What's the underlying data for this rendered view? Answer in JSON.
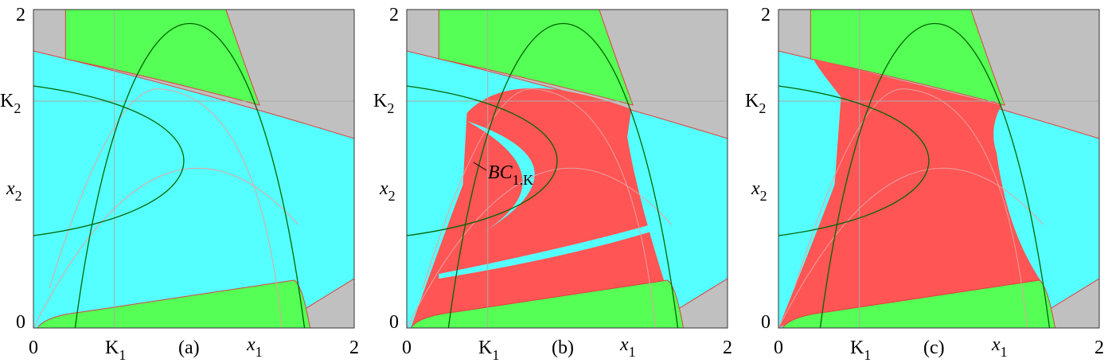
{
  "panels": [
    {
      "label": "(a)",
      "x_min": "0",
      "x_max": "2",
      "y_min": "0",
      "y_max": "2",
      "k1": {
        "text": "K",
        "sub": "1"
      },
      "k2": {
        "text": "K",
        "sub": "2"
      },
      "x1": {
        "text": "x",
        "sub": "1"
      },
      "x2": {
        "text": "x",
        "sub": "2"
      }
    },
    {
      "label": "(b)",
      "x_min": "0",
      "x_max": "2",
      "y_min": "0",
      "y_max": "2",
      "k1": {
        "text": "K",
        "sub": "1"
      },
      "k2": {
        "text": "K",
        "sub": "2"
      },
      "x1": {
        "text": "x",
        "sub": "1"
      },
      "x2": {
        "text": "x",
        "sub": "2"
      },
      "annotation": {
        "text": "BC",
        "sub": "1.K"
      }
    },
    {
      "label": "(c)",
      "x_min": "0",
      "x_max": "2",
      "y_min": "0",
      "y_max": "2",
      "k1": {
        "text": "K",
        "sub": "1"
      },
      "k2": {
        "text": "K",
        "sub": "2"
      },
      "x1": {
        "text": "x",
        "sub": "1"
      },
      "x2": {
        "text": "x",
        "sub": "2"
      }
    }
  ]
}
